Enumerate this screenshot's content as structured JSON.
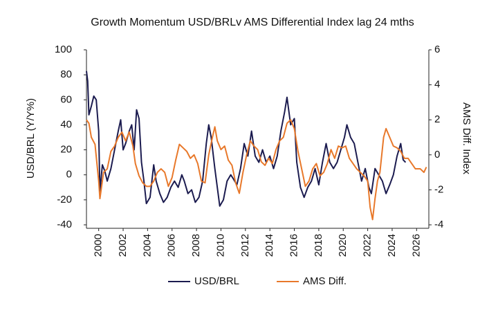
{
  "chart_data": {
    "type": "line",
    "title": "Growth Momentum USD/BRLv AMS Differential Index lag 24 mths",
    "y_label": "USD/BRL (Y/Y%)",
    "y2_label": "AMS Diff. Index",
    "xlim": [
      1999,
      2027
    ],
    "xticks": [
      2000,
      2002,
      2004,
      2006,
      2008,
      2010,
      2012,
      2014,
      2016,
      2018,
      2020,
      2022,
      2024,
      2026
    ],
    "ylim": [
      -40,
      100
    ],
    "yticks": [
      -40,
      -20,
      0,
      20,
      40,
      60,
      80,
      100
    ],
    "y2lim": [
      -4,
      6
    ],
    "y2ticks": [
      -4,
      -2,
      0,
      2,
      4,
      6
    ],
    "legend": "bottom",
    "series": [
      {
        "name": "USD/BRL",
        "color": "#1b1b4f",
        "axis": "y",
        "x": [
          1999.0,
          1999.1,
          1999.2,
          1999.4,
          1999.6,
          1999.8,
          2000.0,
          2000.1,
          2000.3,
          2000.5,
          2000.7,
          2001.0,
          2001.3,
          2001.6,
          2001.8,
          2002.0,
          2002.2,
          2002.5,
          2002.7,
          2002.9,
          2003.1,
          2003.3,
          2003.5,
          2003.7,
          2003.9,
          2004.2,
          2004.5,
          2004.7,
          2005.0,
          2005.3,
          2005.6,
          2005.9,
          2006.2,
          2006.5,
          2006.8,
          2007.0,
          2007.3,
          2007.6,
          2007.9,
          2008.2,
          2008.5,
          2008.8,
          2009.0,
          2009.2,
          2009.5,
          2009.7,
          2009.9,
          2010.2,
          2010.5,
          2010.8,
          2011.0,
          2011.3,
          2011.6,
          2011.9,
          2012.2,
          2012.5,
          2012.8,
          2013.1,
          2013.4,
          2013.7,
          2014.0,
          2014.3,
          2014.6,
          2014.9,
          2015.2,
          2015.4,
          2015.7,
          2016.0,
          2016.2,
          2016.5,
          2016.8,
          2017.1,
          2017.4,
          2017.7,
          2018.0,
          2018.3,
          2018.6,
          2018.9,
          2019.2,
          2019.5,
          2019.8,
          2020.1,
          2020.3,
          2020.6,
          2020.9,
          2021.2,
          2021.5,
          2021.8,
          2022.1,
          2022.3,
          2022.6,
          2022.9,
          2023.2,
          2023.5,
          2023.8,
          2024.1,
          2024.4,
          2024.7,
          2024.9,
          2025.1
        ],
        "values": [
          83,
          75,
          48,
          55,
          63,
          60,
          35,
          -14,
          8,
          3,
          -5,
          5,
          20,
          35,
          44,
          20,
          25,
          35,
          40,
          20,
          52,
          45,
          10,
          -5,
          -23,
          -18,
          8,
          -5,
          -15,
          -22,
          -18,
          -10,
          -5,
          -10,
          0,
          -5,
          -15,
          -12,
          -22,
          -18,
          -5,
          25,
          40,
          30,
          5,
          -10,
          -25,
          -20,
          -5,
          0,
          -3,
          -8,
          5,
          25,
          15,
          35,
          15,
          10,
          20,
          10,
          15,
          5,
          15,
          35,
          50,
          62,
          40,
          45,
          10,
          -10,
          -18,
          -10,
          -5,
          5,
          -8,
          10,
          25,
          10,
          5,
          10,
          20,
          30,
          40,
          30,
          25,
          10,
          -5,
          5,
          -10,
          -15,
          5,
          0,
          -5,
          -15,
          -8,
          0,
          15,
          25,
          12,
          10
        ]
      },
      {
        "name": "AMS Diff.",
        "color": "#e8782a",
        "axis": "y2",
        "x": [
          1999.0,
          1999.2,
          1999.4,
          1999.7,
          2000.0,
          2000.1,
          2000.4,
          2000.7,
          2001.0,
          2001.3,
          2001.6,
          2001.9,
          2002.2,
          2002.5,
          2002.8,
          2003.0,
          2003.3,
          2003.6,
          2003.9,
          2004.2,
          2004.5,
          2004.8,
          2005.1,
          2005.4,
          2005.7,
          2006.0,
          2006.3,
          2006.6,
          2006.9,
          2007.2,
          2007.5,
          2007.8,
          2008.1,
          2008.4,
          2008.7,
          2009.0,
          2009.3,
          2009.5,
          2009.7,
          2010.0,
          2010.3,
          2010.6,
          2010.9,
          2011.2,
          2011.5,
          2011.8,
          2012.1,
          2012.4,
          2012.7,
          2013.0,
          2013.3,
          2013.6,
          2013.9,
          2014.2,
          2014.5,
          2014.8,
          2015.1,
          2015.4,
          2015.7,
          2016.0,
          2016.3,
          2016.6,
          2016.9,
          2017.2,
          2017.5,
          2017.8,
          2018.1,
          2018.4,
          2018.7,
          2019.0,
          2019.3,
          2019.6,
          2019.9,
          2020.2,
          2020.5,
          2020.8,
          2021.1,
          2021.4,
          2021.7,
          2022.0,
          2022.2,
          2022.4,
          2022.6,
          2022.8,
          2023.0,
          2023.3,
          2023.5,
          2023.8,
          2024.1,
          2024.4,
          2024.7,
          2025.0,
          2025.3,
          2025.6,
          2025.9,
          2026.3,
          2026.6,
          2026.8
        ],
        "values": [
          2.0,
          1.8,
          1.0,
          0.6,
          -1.5,
          -2.5,
          -1.0,
          -0.8,
          0.2,
          0.5,
          1.0,
          1.3,
          0.8,
          1.3,
          0.5,
          -0.5,
          -1.2,
          -1.6,
          -1.8,
          -1.8,
          -1.5,
          -1.0,
          -0.8,
          -1.0,
          -1.8,
          -1.3,
          -0.3,
          0.6,
          0.4,
          0.2,
          -0.2,
          0,
          -0.5,
          -1.5,
          -1.6,
          0,
          1.0,
          1.6,
          0.8,
          0.3,
          0.5,
          -0.3,
          -0.6,
          -1.6,
          -2.2,
          -1.0,
          0,
          0.8,
          0.5,
          0.3,
          -0.4,
          -0.6,
          -0.2,
          -0.5,
          0.3,
          0.8,
          1.0,
          1.8,
          2.0,
          1.5,
          0.2,
          -0.8,
          -1.8,
          -1.5,
          -0.8,
          -0.5,
          -1.2,
          -1.0,
          -0.5,
          0.3,
          -0.2,
          0.5,
          0.4,
          0.5,
          -0.2,
          -0.5,
          -0.8,
          -1.0,
          -1.2,
          -1.5,
          -3.0,
          -3.7,
          -2.5,
          -1.5,
          -1.0,
          1.0,
          1.5,
          1.0,
          0.5,
          0.4,
          0.2,
          -0.2,
          -0.2,
          -0.5,
          -0.8,
          -0.8,
          -1.0,
          -0.7
        ]
      }
    ]
  }
}
